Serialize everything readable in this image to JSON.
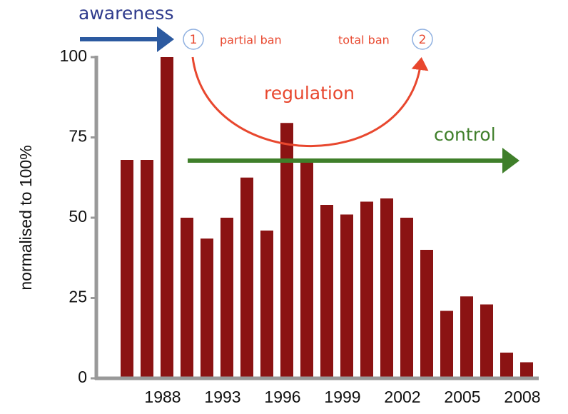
{
  "chart_data": {
    "type": "bar",
    "y_label": "normalised to 100%",
    "categories": [
      null,
      null,
      "1988",
      null,
      null,
      "1993",
      null,
      null,
      "1996",
      null,
      null,
      "1999",
      null,
      null,
      "2002",
      null,
      null,
      "2005",
      null,
      null,
      "2008"
    ],
    "values": [
      68,
      68,
      100,
      50,
      43.5,
      50,
      62.5,
      46,
      79.5,
      68,
      54,
      51,
      55,
      56,
      50,
      40,
      21,
      25.5,
      23,
      8,
      5
    ],
    "color": "#8b1313",
    "ylim": [
      0,
      100
    ],
    "yticks": [
      0,
      25,
      50,
      75,
      100
    ],
    "annotations": {
      "awareness": "awareness",
      "step1": "1",
      "partial_ban": "partial ban",
      "total_ban": "total ban",
      "step2": "2",
      "regulation": "regulation",
      "control": "control"
    }
  }
}
